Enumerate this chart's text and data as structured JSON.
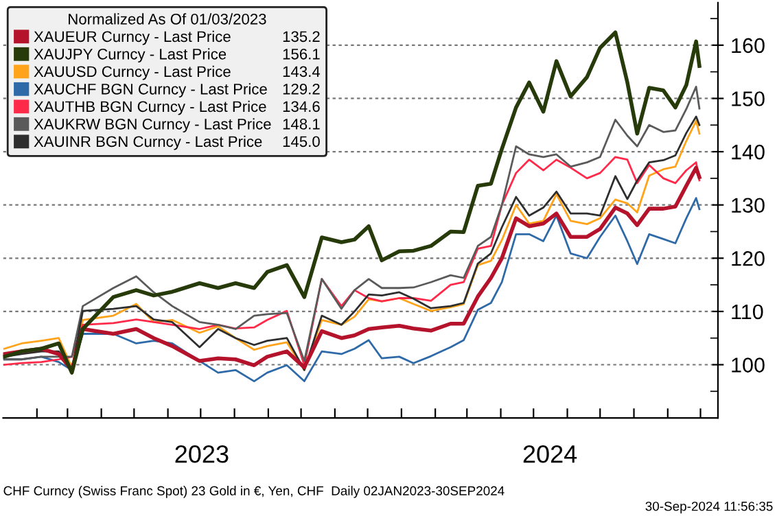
{
  "chart_data": {
    "type": "line",
    "legend_title": "Normalized As Of 01/03/2023",
    "x": [
      "2023-01-02",
      "2023-01-18",
      "2023-02-05",
      "2023-02-21",
      "2023-03-05",
      "2023-03-15",
      "2023-04-12",
      "2023-05-03",
      "2023-05-19",
      "2023-06-05",
      "2023-06-30",
      "2023-07-17",
      "2023-08-02",
      "2023-08-19",
      "2023-08-31",
      "2023-09-18",
      "2023-10-04",
      "2023-10-20",
      "2023-11-07",
      "2023-11-19",
      "2023-12-02",
      "2023-12-14",
      "2023-12-30",
      "2024-01-12",
      "2024-01-28",
      "2024-02-15",
      "2024-02-27",
      "2024-03-11",
      "2024-03-23",
      "2024-04-02",
      "2024-04-15",
      "2024-04-27",
      "2024-05-10",
      "2024-05-22",
      "2024-06-04",
      "2024-06-19",
      "2024-07-01",
      "2024-07-15",
      "2024-07-26",
      "2024-08-04",
      "2024-08-15",
      "2024-08-28",
      "2024-09-08",
      "2024-09-18",
      "2024-09-27",
      "2024-09-30"
    ],
    "series": [
      {
        "name": "XAUEUR Curncy - Last Price",
        "color": "#b5132b",
        "values": [
          102,
          102.5,
          103,
          102,
          99,
          106.7,
          105.8,
          106.7,
          105,
          103.5,
          100.7,
          101.2,
          101,
          99.9,
          101.5,
          102.5,
          99.5,
          106.3,
          105,
          105.5,
          106.7,
          107,
          107.3,
          106.8,
          106.4,
          107.7,
          107.7,
          112.8,
          116.3,
          120,
          127.5,
          126,
          126.5,
          128.4,
          124,
          124,
          125.5,
          129.5,
          128.4,
          126.2,
          129.3,
          129.3,
          129.7,
          133.6,
          137,
          135.2
        ]
      },
      {
        "name": "XAUJPY Curncy - Last Price",
        "color": "#263a0a",
        "values": [
          101.5,
          102.5,
          103,
          104,
          98.5,
          106.7,
          112.7,
          114,
          113,
          113.7,
          115.3,
          114.4,
          115.3,
          114.4,
          117.4,
          118.7,
          112.7,
          123.9,
          123,
          123.5,
          126,
          119.6,
          121.3,
          121.4,
          122.3,
          125,
          124.9,
          133.6,
          134,
          140.5,
          148.3,
          153,
          147.5,
          157,
          150.4,
          154,
          159.5,
          162.4,
          153,
          143.4,
          152,
          151.5,
          148.3,
          152.5,
          160.7,
          156.1
        ]
      },
      {
        "name": "XAUUSD Curncy - Last Price",
        "color": "#ffa31a",
        "values": [
          103,
          104,
          104.5,
          105,
          99.5,
          108.4,
          109.2,
          111.4,
          108,
          108.4,
          106,
          107.2,
          105,
          102.8,
          103.5,
          104.2,
          99,
          108.4,
          107.5,
          109,
          112.3,
          111.9,
          112.5,
          111.4,
          110.1,
          110.8,
          111.4,
          118.7,
          119.5,
          123.4,
          130,
          126.5,
          127,
          132,
          127,
          126.4,
          127.5,
          131,
          130.3,
          128.6,
          135.5,
          136.7,
          137.2,
          142,
          145.8,
          143.4
        ]
      },
      {
        "name": "XAUCHF BGN Curncy - Last Price",
        "color": "#2e6aa8",
        "values": [
          101,
          101,
          101.5,
          100.5,
          99,
          105.8,
          105.8,
          104,
          104.5,
          104,
          100.7,
          98.5,
          99,
          96.9,
          98.5,
          99.9,
          96.9,
          102.5,
          102,
          103,
          104.6,
          101.2,
          101.5,
          100.3,
          101.6,
          103.3,
          104.6,
          110.3,
          111.6,
          115.5,
          124.5,
          124.5,
          123.2,
          128,
          120.9,
          120,
          124,
          128,
          123.2,
          118.9,
          124.5,
          123.6,
          122.8,
          127.5,
          131.3,
          129.2
        ]
      },
      {
        "name": "XAUTHB BGN Curncy - Last Price",
        "color": "#ff2a4a",
        "values": [
          100,
          100.3,
          100.5,
          101,
          101.5,
          107.5,
          107.8,
          108.5,
          108,
          107.5,
          106.7,
          107.5,
          106.8,
          107,
          108.4,
          110.1,
          99.9,
          116.1,
          111,
          114,
          112.5,
          111.9,
          112.5,
          112.5,
          112,
          115,
          115.5,
          121.8,
          122.3,
          130,
          136,
          138.5,
          136.5,
          138.5,
          137,
          135,
          136,
          139,
          138.5,
          134.1,
          137.5,
          135,
          134.1,
          136.5,
          138,
          134.6
        ]
      },
      {
        "name": "XAUKRW BGN Curncy - Last Price",
        "color": "#5a5a5a",
        "values": [
          101,
          101,
          101.5,
          101.5,
          101.5,
          111,
          114.4,
          116.6,
          113.6,
          111,
          108,
          107.5,
          106.7,
          109.2,
          109.5,
          109.7,
          100.7,
          116.1,
          110.5,
          114,
          116.1,
          114.4,
          114.4,
          114.5,
          115.5,
          116.8,
          116.3,
          122.3,
          124,
          130,
          141,
          139.5,
          139,
          139.5,
          137.2,
          138,
          139,
          146,
          143,
          141,
          145,
          143.7,
          144,
          148,
          152.2,
          148.1
        ]
      },
      {
        "name": "XAUINR BGN Curncy - Last Price",
        "color": "#2e2e2e",
        "values": [
          101.5,
          102,
          102.5,
          102.5,
          99,
          110.1,
          110.5,
          111,
          108.5,
          108,
          103.3,
          106.7,
          105,
          103.7,
          104.5,
          105,
          99,
          109.2,
          107.5,
          110,
          113.2,
          113,
          113.6,
          112.4,
          110.6,
          111,
          111.6,
          119,
          120.9,
          125.8,
          131.5,
          128,
          129.5,
          132.5,
          128.4,
          128.4,
          128,
          135.4,
          131.1,
          134.6,
          138,
          138.4,
          139.3,
          143.5,
          146.6,
          145
        ]
      }
    ],
    "xlim": [
      "2023-01-01",
      "2024-10-17"
    ],
    "xticks": [
      {
        "value": "2023-02-01",
        "label": null
      },
      {
        "value": "2023-03-01",
        "label": null
      },
      {
        "value": "2023-04-01",
        "label": null
      },
      {
        "value": "2023-05-01",
        "label": null
      },
      {
        "value": "2023-06-01",
        "label": null
      },
      {
        "value": "2023-07-01",
        "label": null
      },
      {
        "value": "2023-08-01",
        "label": null
      },
      {
        "value": "2023-09-01",
        "label": null
      },
      {
        "value": "2023-10-01",
        "label": null
      },
      {
        "value": "2023-11-01",
        "label": null
      },
      {
        "value": "2023-12-01",
        "label": null
      },
      {
        "value": "2024-01-01",
        "label": null
      },
      {
        "value": "2024-02-01",
        "label": null
      },
      {
        "value": "2024-03-01",
        "label": null
      },
      {
        "value": "2024-04-01",
        "label": null
      },
      {
        "value": "2024-05-01",
        "label": null
      },
      {
        "value": "2024-06-01",
        "label": null
      },
      {
        "value": "2024-07-01",
        "label": null
      },
      {
        "value": "2024-08-01",
        "label": null
      },
      {
        "value": "2024-09-01",
        "label": null
      },
      {
        "value": "2024-10-01",
        "label": null
      },
      {
        "value": "2023-07-02",
        "label": "2023"
      },
      {
        "value": "2024-05-16",
        "label": "2024"
      }
    ],
    "ylim": [
      90,
      168
    ],
    "yticks": [
      {
        "value": 90,
        "label": null
      },
      {
        "value": 95,
        "label": null
      },
      100,
      {
        "value": 105,
        "label": null
      },
      110,
      {
        "value": 115,
        "label": null
      },
      120,
      {
        "value": 125,
        "label": null
      },
      130,
      {
        "value": 135,
        "label": null
      },
      140,
      {
        "value": 145,
        "label": null
      },
      150,
      {
        "value": 155,
        "label": null
      },
      160,
      {
        "value": 165,
        "label": null
      }
    ],
    "grid": "y",
    "legend": "top left",
    "marker": "none",
    "line_style": "solid",
    "annotations": [
      "CHF Curncy (Swiss Franc Spot) 23 Gold in €, Yen, CHF  Daily 02JAN2023-30SEP2024",
      "30-Sep-2024 11:56:35",
      "135.2",
      "156.1",
      "143.4",
      "129.2",
      "134.6",
      "148.1",
      "145.0"
    ]
  }
}
